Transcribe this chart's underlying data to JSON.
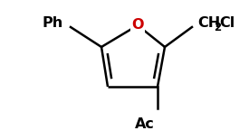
{
  "bg_color": "#ffffff",
  "line_color": "#000000",
  "text_color": "#000000",
  "o_color": "#cc0000",
  "figsize": [
    2.75,
    1.55
  ],
  "dpi": 100,
  "label_ph": "Ph",
  "label_ch2": "CH",
  "label_sub2": "2",
  "label_cl": "Cl",
  "label_ac": "Ac",
  "label_o": "O",
  "font_size_main": 11.5,
  "font_size_sub": 8.5,
  "lw": 1.8
}
